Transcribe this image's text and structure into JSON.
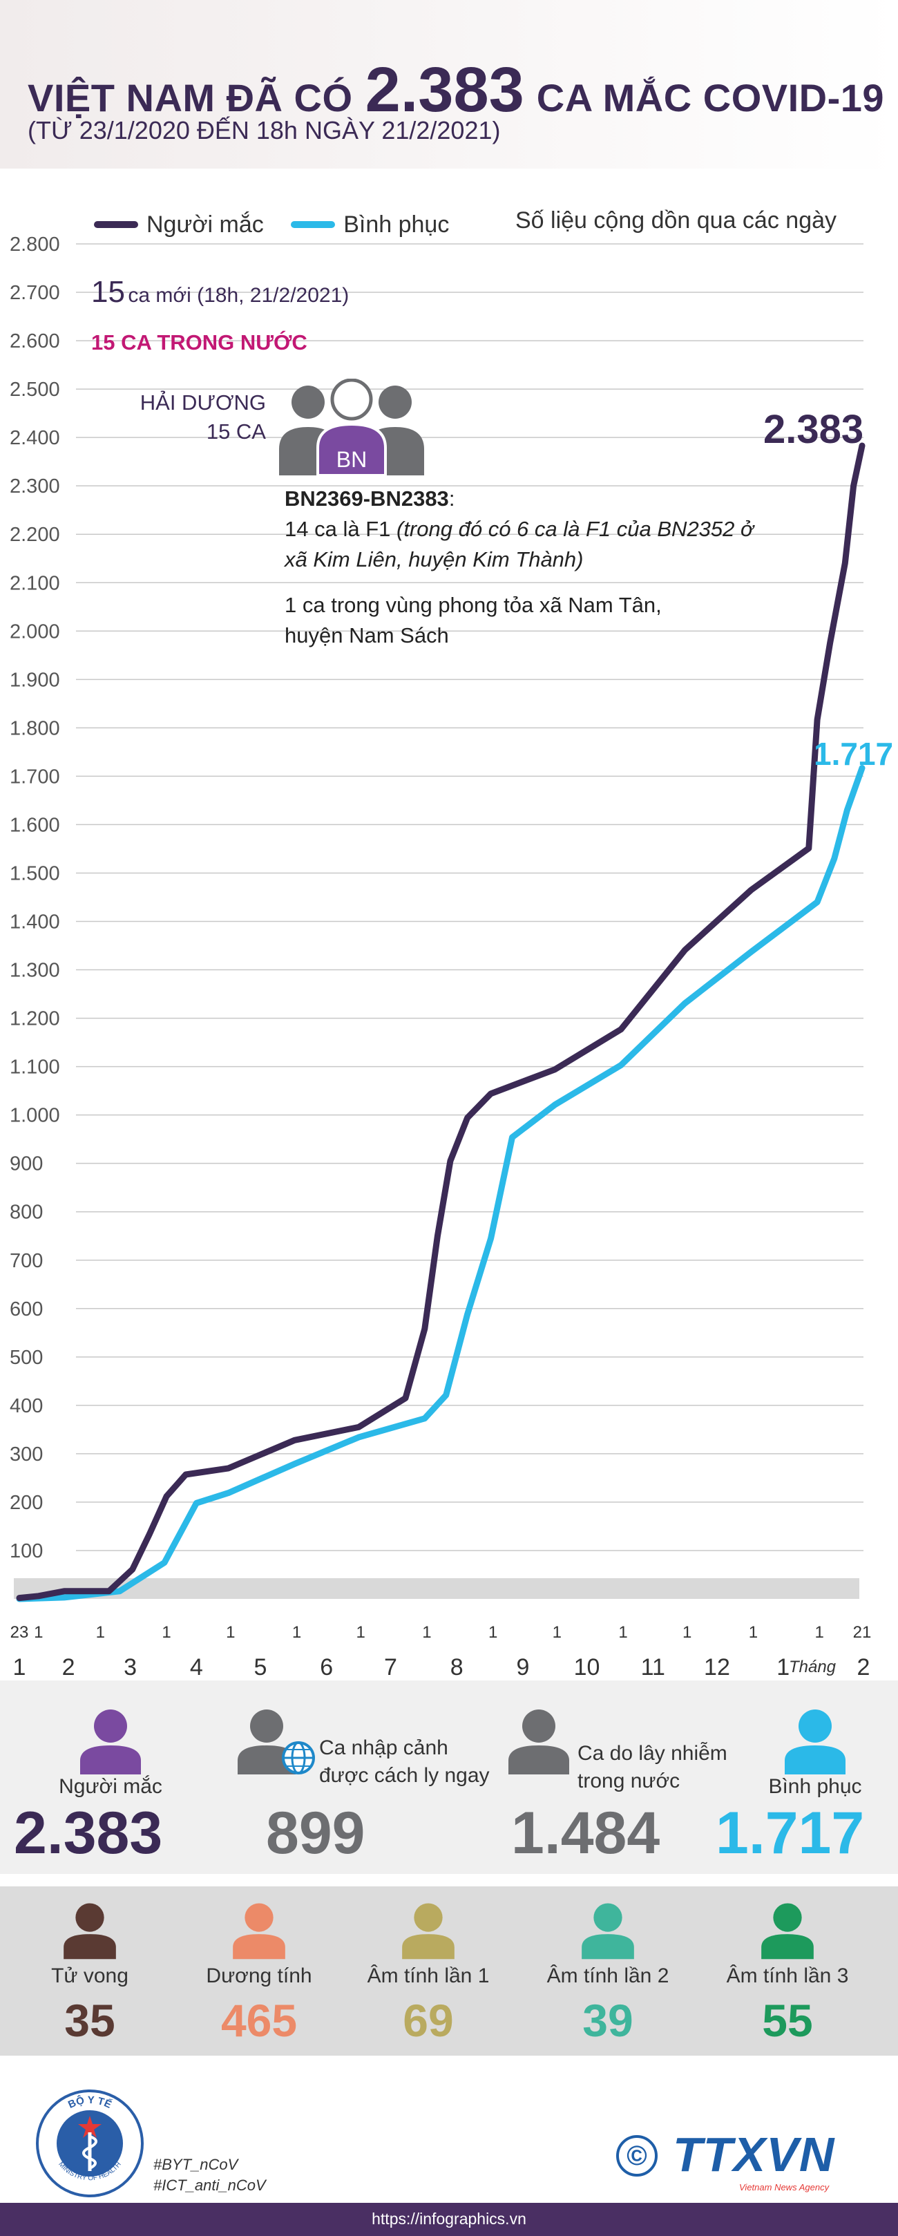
{
  "header": {
    "title_pre": "VIỆT NAM ĐÃ CÓ",
    "title_num": "2.383",
    "title_post": "CA MẮC COVID-19",
    "subtitle": "(TỪ 23/1/2020 ĐẾN 18h NGÀY 21/2/2021)"
  },
  "legend": {
    "cases": "Người mắc",
    "recovered": "Bình phục",
    "note": "Số liệu cộng dồn qua các ngày"
  },
  "annotations": {
    "new_num": "15",
    "new_text": "ca mới (18h, 21/2/2021)",
    "domestic": "15 CA TRONG NƯỚC",
    "province": "HẢI DƯƠNG",
    "province_count": "15 CA",
    "badge": "BN",
    "patients": "BN2369-BN2383",
    "line1_a": "14 ca là F1",
    "line1_b": "(trong đó có 6 ca là F1 của BN2352 ở",
    "line1_c": "xã Kim Liên, huyện Kim Thành)",
    "line2_a": "1 ca trong vùng phong tỏa xã Nam Tân,",
    "line2_b": "huyện Nam Sách",
    "end_cases": "2.383",
    "end_recovered": "1.717"
  },
  "chart_data": {
    "type": "line",
    "title": "",
    "xlabel": "",
    "ylabel": "",
    "ylim": [
      0,
      2800
    ],
    "y_ticks": [
      "100",
      "200",
      "300",
      "400",
      "500",
      "600",
      "700",
      "800",
      "900",
      "1.000",
      "1.100",
      "1.200",
      "1.300",
      "1.400",
      "1.500",
      "1.600",
      "1.700",
      "1.800",
      "1.900",
      "2.000",
      "2.100",
      "2.200",
      "2.300",
      "2.400",
      "2.500",
      "2.600",
      "2.700",
      "2.800"
    ],
    "x_day_labels": [
      "23",
      "1",
      "1",
      "1",
      "1",
      "1",
      "1",
      "1",
      "1",
      "1",
      "1",
      "1",
      "1",
      "1",
      "21"
    ],
    "x_month_labels": [
      "1",
      "2",
      "3",
      "4",
      "5",
      "6",
      "7",
      "8",
      "9",
      "10",
      "11",
      "12",
      "1",
      "2"
    ],
    "x_year_start": "2020",
    "x_year_end": "2021",
    "x_month_word": "Tháng",
    "series": [
      {
        "name": "Người mắc",
        "color": "#3b2a55",
        "x": [
          "2020-01-23",
          "2020-02-01",
          "2020-02-13",
          "2020-03-05",
          "2020-03-16",
          "2020-03-24",
          "2020-04-01",
          "2020-04-10",
          "2020-04-30",
          "2020-05-31",
          "2020-06-30",
          "2020-07-22",
          "2020-07-31",
          "2020-08-06",
          "2020-08-12",
          "2020-08-20",
          "2020-08-31",
          "2020-09-30",
          "2020-10-31",
          "2020-11-30",
          "2020-12-31",
          "2021-01-27",
          "2021-01-31",
          "2021-02-06",
          "2021-02-13",
          "2021-02-17",
          "2021-02-21"
        ],
        "y": [
          2,
          6,
          16,
          16,
          61,
          134,
          212,
          257,
          270,
          328,
          355,
          415,
          558,
          750,
          905,
          994,
          1044,
          1094,
          1177,
          1341,
          1465,
          1551,
          1817,
          1976,
          2140,
          2300,
          2383
        ]
      },
      {
        "name": "Bình phục",
        "color": "#2bb9e8",
        "x": [
          "2020-01-23",
          "2020-02-13",
          "2020-03-10",
          "2020-03-31",
          "2020-04-15",
          "2020-04-30",
          "2020-05-31",
          "2020-06-30",
          "2020-07-31",
          "2020-08-10",
          "2020-08-20",
          "2020-08-31",
          "2020-09-10",
          "2020-09-30",
          "2020-10-31",
          "2020-11-30",
          "2020-12-31",
          "2021-01-31",
          "2021-02-08",
          "2021-02-14",
          "2021-02-21"
        ],
        "y": [
          0,
          3,
          16,
          75,
          198,
          219,
          279,
          334,
          373,
          421,
          588,
          745,
          954,
          1021,
          1103,
          1231,
          1337,
          1440,
          1530,
          1630,
          1717
        ]
      }
    ]
  },
  "stats": {
    "total_label": "Người mắc",
    "total_value": "2.383",
    "imported_label_1": "Ca nhập cảnh",
    "imported_label_2": "được cách ly ngay",
    "imported_value": "899",
    "local_label_1": "Ca do lây nhiễm",
    "local_label_2": "trong nước",
    "local_value": "1.484",
    "recovered_label": "Bình phục",
    "recovered_value": "1.717"
  },
  "stats2": [
    {
      "label": "Tử vong",
      "value": "35",
      "color": "#5a3a33"
    },
    {
      "label": "Dương tính",
      "value": "465",
      "color": "#ec8a68"
    },
    {
      "label": "Âm tính lần 1",
      "value": "69",
      "color": "#b9aa5f"
    },
    {
      "label": "Âm tính lần 2",
      "value": "39",
      "color": "#3fb59c"
    },
    {
      "label": "Âm tính lần 3",
      "value": "55",
      "color": "#1d9a5c"
    }
  ],
  "footer": {
    "seal_top": "BỘ Y TẾ",
    "seal_bottom": "MINISTRY OF HEALTH",
    "tag1": "#BYT_nCoV",
    "tag2": "#ICT_anti_nCoV",
    "copyright": "©",
    "brand": "TTXVN",
    "brand_sub": "Vietnam News Agency",
    "url": "https://infographics.vn"
  },
  "colors": {
    "purple": "#3b2a55",
    "cyan": "#2bb9e8",
    "grey": "#6d6e71",
    "magenta": "#c21874",
    "person_purple": "#7a4aa0"
  }
}
